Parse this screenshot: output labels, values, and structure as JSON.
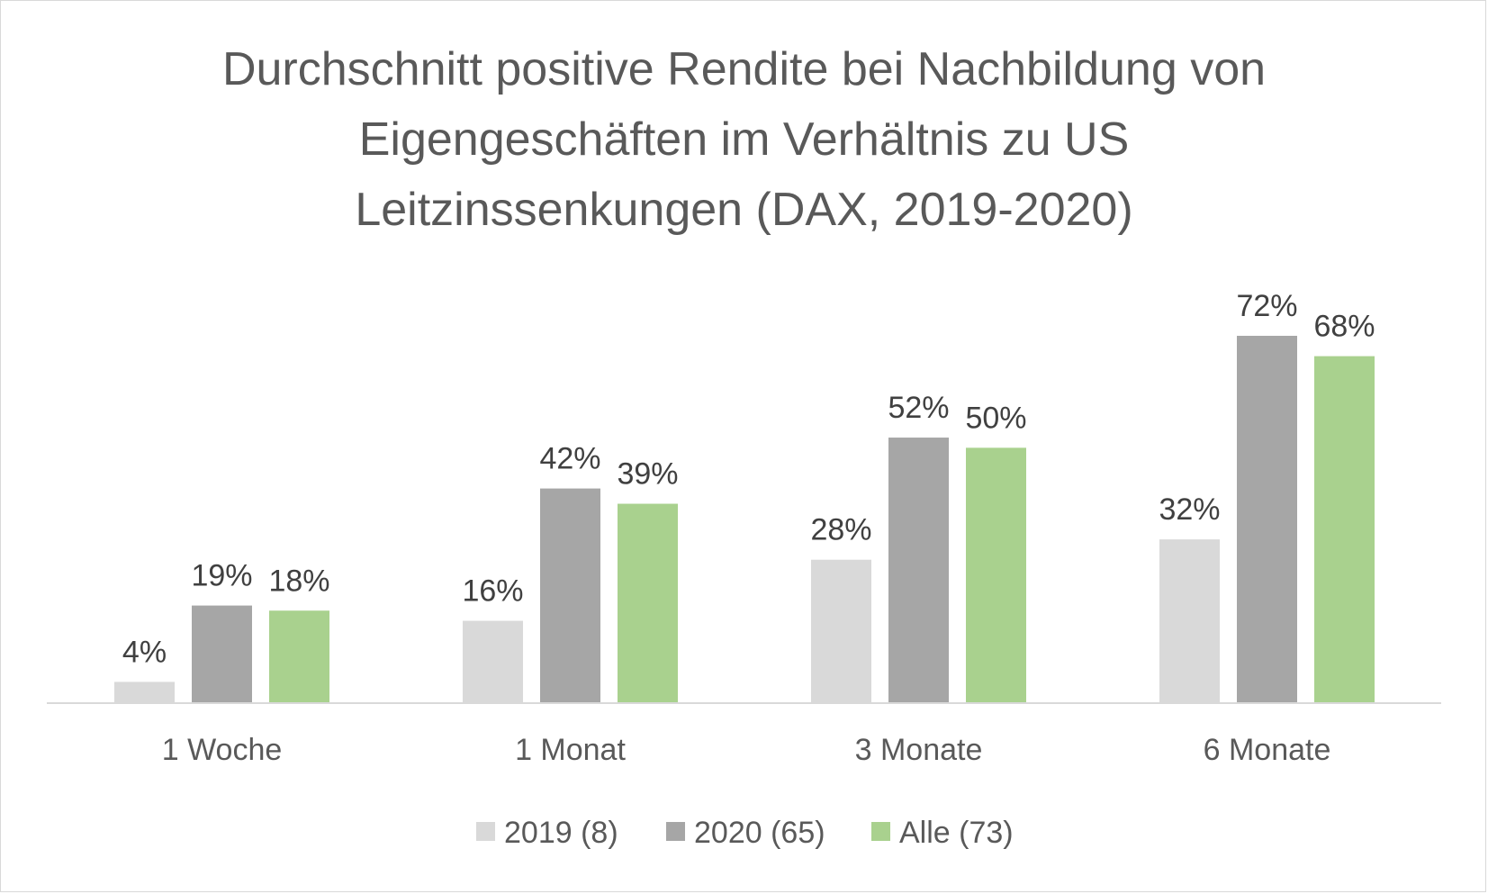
{
  "chart_data": {
    "type": "bar",
    "title_lines": [
      "Durchschnitt positive Rendite bei Nachbildung von",
      "Eigengeschäften im Verhältnis zu US",
      "Leitzinssenkungen (DAX, 2019-2020)"
    ],
    "categories": [
      "1 Woche",
      "1 Monat",
      "3 Monate",
      "6 Monate"
    ],
    "series": [
      {
        "name": "2019 (8)",
        "color": "#d9d9d9",
        "values": [
          4,
          16,
          28,
          32
        ],
        "labels": [
          "4%",
          "16%",
          "28%",
          "32%"
        ]
      },
      {
        "name": "2020 (65)",
        "color": "#a6a6a6",
        "values": [
          19,
          42,
          52,
          72
        ],
        "labels": [
          "19%",
          "42%",
          "52%",
          "72%"
        ]
      },
      {
        "name": "Alle (73)",
        "color": "#a9d18e",
        "values": [
          18,
          39,
          50,
          68
        ],
        "labels": [
          "18%",
          "39%",
          "50%",
          "68%"
        ]
      }
    ],
    "ylim": [
      0,
      80
    ],
    "unit": "%",
    "grid": false,
    "legend_position": "bottom",
    "axis_color": "#d9d9d9"
  }
}
